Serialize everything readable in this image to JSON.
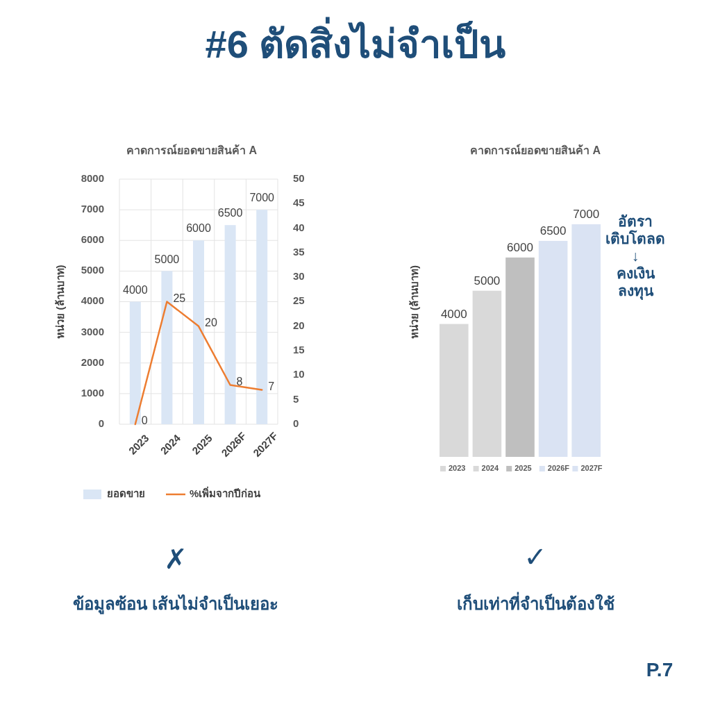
{
  "chart_data": [
    {
      "type": "bar",
      "title": "คาดการณ์ยอดขายสินค้า A",
      "ylabel": "หน่วย (ล้านบาท)",
      "categories": [
        "2023",
        "2024",
        "2025",
        "2026F",
        "2027F"
      ],
      "series": [
        {
          "name": "ยอดขาย",
          "type": "bar",
          "color": "#dae6f5",
          "values": [
            4000,
            5000,
            6000,
            6500,
            7000
          ]
        },
        {
          "name": "%เพิ่มจากปีก่อน",
          "type": "line",
          "axis": "y2",
          "color": "#ed7d31",
          "values": [
            0,
            25,
            20,
            8,
            7
          ]
        }
      ],
      "ylim": [
        0,
        8000
      ],
      "yticks": [
        0,
        1000,
        2000,
        3000,
        4000,
        5000,
        6000,
        7000,
        8000
      ],
      "y2lim": [
        0,
        50
      ],
      "y2ticks": [
        0,
        5,
        10,
        15,
        20,
        25,
        30,
        35,
        40,
        45,
        50
      ],
      "grid": true,
      "legend": "bottom",
      "data_labels": true,
      "annotations": [
        "#6 ตัดสิ่งไม่จำเป็น",
        "✗",
        "ข้อมูลซ้อน เส้นไม่จำเป็นเยอะ"
      ]
    },
    {
      "type": "bar",
      "title": "คาดการณ์ยอดขายสินค้า A",
      "ylabel": "หน่วย (ล้านบาท)",
      "categories": [
        "2023",
        "2024",
        "2025",
        "2026F",
        "2027F"
      ],
      "values": [
        4000,
        5000,
        6000,
        6500,
        7000
      ],
      "colors": [
        "#d9d9d9",
        "#d9d9d9",
        "#bfbfbf",
        "#dae3f3",
        "#dae3f3"
      ],
      "data_labels": true,
      "annotations": [
        "อัตรา\nเติบโตลด\n↓\nคงเงิน\nลงทุน",
        "✓",
        "เก็บเท่าที่จำเป็นต้องใช้",
        "P.7"
      ]
    }
  ]
}
